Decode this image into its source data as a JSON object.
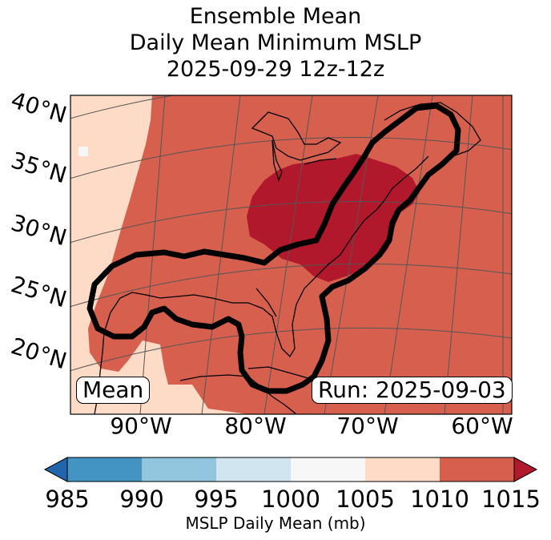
{
  "title": {
    "line1": "Ensemble Mean",
    "line2": "Daily Mean Minimum MSLP",
    "line3": "2025-09-29 12z-12z"
  },
  "map": {
    "lat_labels": [
      "40°N",
      "35°N",
      "30°N",
      "25°N",
      "20°N"
    ],
    "lon_labels": [
      "90°W",
      "80°W",
      "70°W",
      "60°W"
    ],
    "mean_badge": "Mean",
    "run_badge": "Run: 2025-09-03",
    "colors": {
      "fill_1005_1010": "#fddbc7",
      "fill_1010_1015": "#d6604d",
      "fill_above_1015": "#b2182b",
      "contour": "#000000",
      "coast": "#000000",
      "grid": "#555555"
    }
  },
  "colorbar": {
    "ticks": [
      "985",
      "990",
      "995",
      "1000",
      "1005",
      "1010",
      "1015"
    ],
    "segment_colors": [
      "#2166ac",
      "#4393c3",
      "#92c5de",
      "#d1e5f0",
      "#f7f7f7",
      "#fddbc7",
      "#d6604d",
      "#b2182b"
    ],
    "label": "MSLP Daily Mean (mb)"
  }
}
